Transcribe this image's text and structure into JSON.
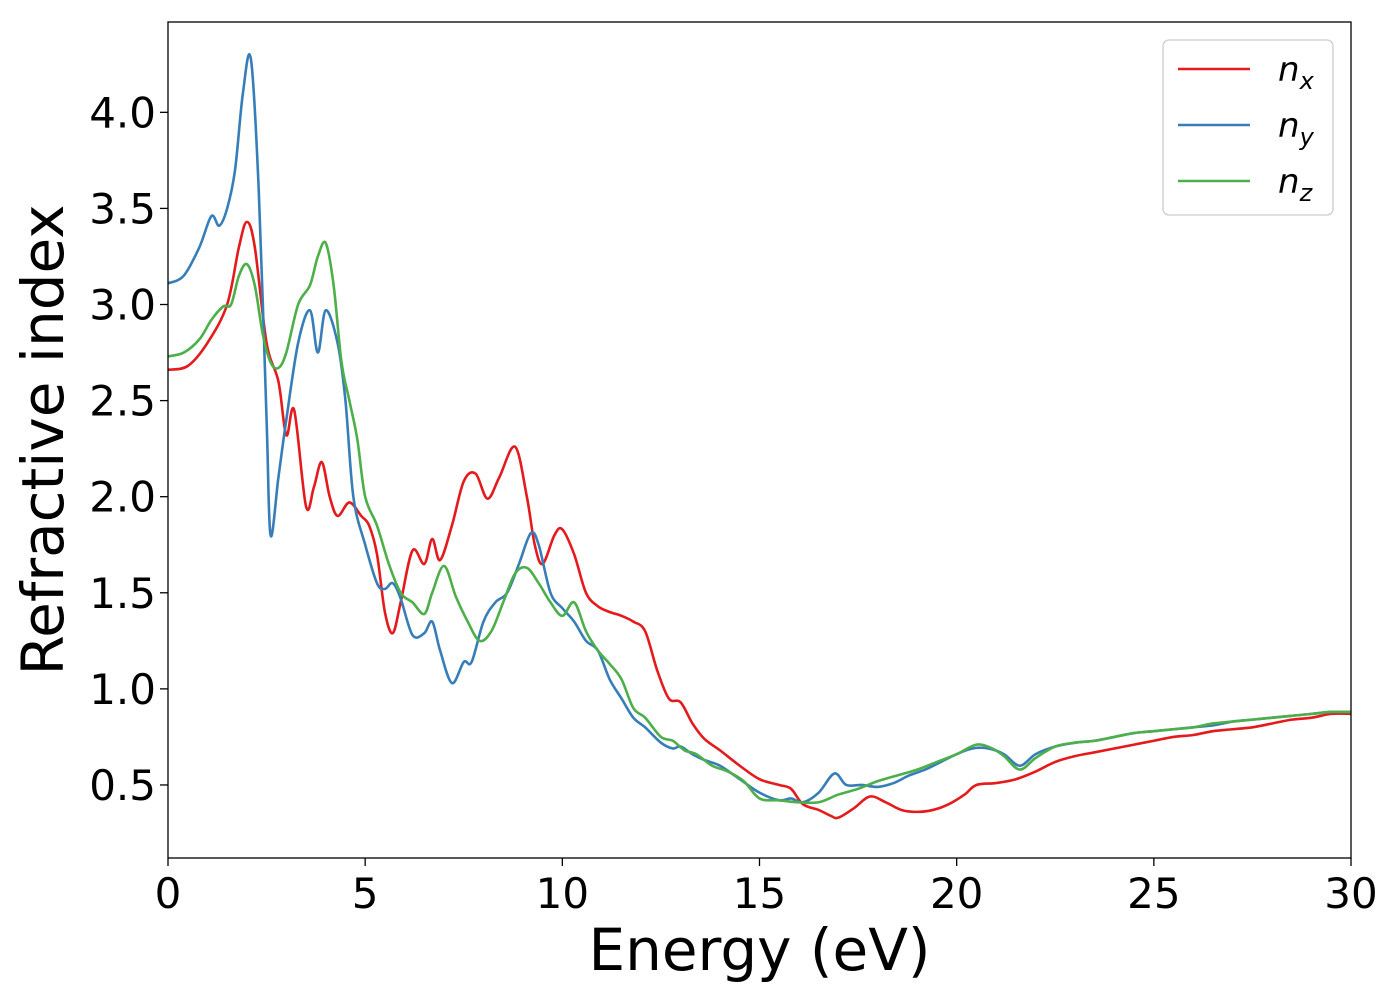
{
  "chart_data": {
    "type": "line",
    "xlabel": "Energy (eV)",
    "ylabel": "Refractive index",
    "xlim": [
      0,
      30
    ],
    "ylim": [
      0.12,
      4.47
    ],
    "xticks": [
      0,
      5,
      10,
      15,
      20,
      25,
      30
    ],
    "xtick_labels": [
      "0",
      "5",
      "10",
      "15",
      "20",
      "25",
      "30"
    ],
    "yticks": [
      0.5,
      1.0,
      1.5,
      2.0,
      2.5,
      3.0,
      3.5,
      4.0
    ],
    "ytick_labels": [
      "0.5",
      "1.0",
      "1.5",
      "2.0",
      "2.5",
      "3.0",
      "3.5",
      "4.0"
    ],
    "grid": false,
    "legend_position": "top-right",
    "series": [
      {
        "name": "n",
        "subscript": "x",
        "color": "#e41a1c",
        "points": [
          [
            0,
            2.66
          ],
          [
            0.5,
            2.68
          ],
          [
            1.0,
            2.8
          ],
          [
            1.5,
            3.0
          ],
          [
            1.8,
            3.3
          ],
          [
            2.0,
            3.43
          ],
          [
            2.2,
            3.3
          ],
          [
            2.5,
            2.8
          ],
          [
            2.8,
            2.6
          ],
          [
            3.0,
            2.32
          ],
          [
            3.2,
            2.45
          ],
          [
            3.5,
            1.95
          ],
          [
            3.7,
            2.05
          ],
          [
            3.9,
            2.18
          ],
          [
            4.1,
            2.0
          ],
          [
            4.3,
            1.9
          ],
          [
            4.6,
            1.97
          ],
          [
            4.9,
            1.9
          ],
          [
            5.1,
            1.85
          ],
          [
            5.3,
            1.7
          ],
          [
            5.5,
            1.4
          ],
          [
            5.7,
            1.29
          ],
          [
            5.9,
            1.45
          ],
          [
            6.2,
            1.72
          ],
          [
            6.5,
            1.65
          ],
          [
            6.7,
            1.78
          ],
          [
            6.9,
            1.67
          ],
          [
            7.2,
            1.85
          ],
          [
            7.5,
            2.08
          ],
          [
            7.8,
            2.12
          ],
          [
            8.1,
            1.99
          ],
          [
            8.4,
            2.1
          ],
          [
            8.8,
            2.26
          ],
          [
            9.1,
            2.0
          ],
          [
            9.3,
            1.75
          ],
          [
            9.5,
            1.65
          ],
          [
            9.8,
            1.8
          ],
          [
            10.0,
            1.83
          ],
          [
            10.3,
            1.7
          ],
          [
            10.6,
            1.5
          ],
          [
            10.9,
            1.43
          ],
          [
            11.2,
            1.4
          ],
          [
            11.5,
            1.38
          ],
          [
            11.8,
            1.35
          ],
          [
            12.1,
            1.3
          ],
          [
            12.4,
            1.1
          ],
          [
            12.7,
            0.95
          ],
          [
            13.0,
            0.93
          ],
          [
            13.3,
            0.82
          ],
          [
            13.6,
            0.74
          ],
          [
            14.0,
            0.68
          ],
          [
            14.5,
            0.6
          ],
          [
            15.0,
            0.53
          ],
          [
            15.5,
            0.5
          ],
          [
            15.8,
            0.48
          ],
          [
            16.1,
            0.4
          ],
          [
            16.5,
            0.37
          ],
          [
            16.8,
            0.34
          ],
          [
            17.0,
            0.33
          ],
          [
            17.4,
            0.38
          ],
          [
            17.8,
            0.44
          ],
          [
            18.2,
            0.41
          ],
          [
            18.6,
            0.37
          ],
          [
            19.0,
            0.36
          ],
          [
            19.4,
            0.37
          ],
          [
            19.8,
            0.4
          ],
          [
            20.2,
            0.45
          ],
          [
            20.5,
            0.5
          ],
          [
            21.0,
            0.51
          ],
          [
            21.5,
            0.53
          ],
          [
            22.0,
            0.57
          ],
          [
            22.5,
            0.62
          ],
          [
            23.0,
            0.65
          ],
          [
            23.5,
            0.67
          ],
          [
            24.0,
            0.69
          ],
          [
            24.5,
            0.71
          ],
          [
            25.0,
            0.73
          ],
          [
            25.5,
            0.75
          ],
          [
            26.0,
            0.76
          ],
          [
            26.5,
            0.78
          ],
          [
            27.0,
            0.79
          ],
          [
            27.5,
            0.8
          ],
          [
            28.0,
            0.82
          ],
          [
            28.5,
            0.84
          ],
          [
            29.0,
            0.85
          ],
          [
            29.5,
            0.87
          ],
          [
            30.0,
            0.87
          ]
        ]
      },
      {
        "name": "n",
        "subscript": "y",
        "color": "#377eb8",
        "points": [
          [
            0,
            3.11
          ],
          [
            0.4,
            3.15
          ],
          [
            0.8,
            3.3
          ],
          [
            1.1,
            3.46
          ],
          [
            1.3,
            3.41
          ],
          [
            1.5,
            3.5
          ],
          [
            1.7,
            3.7
          ],
          [
            1.9,
            4.1
          ],
          [
            2.1,
            4.28
          ],
          [
            2.3,
            3.6
          ],
          [
            2.5,
            2.4
          ],
          [
            2.6,
            1.8
          ],
          [
            2.8,
            2.1
          ],
          [
            3.0,
            2.4
          ],
          [
            3.3,
            2.8
          ],
          [
            3.6,
            2.97
          ],
          [
            3.8,
            2.75
          ],
          [
            4.0,
            2.97
          ],
          [
            4.3,
            2.8
          ],
          [
            4.5,
            2.5
          ],
          [
            4.7,
            2.0
          ],
          [
            5.0,
            1.75
          ],
          [
            5.3,
            1.55
          ],
          [
            5.5,
            1.52
          ],
          [
            5.7,
            1.55
          ],
          [
            5.9,
            1.47
          ],
          [
            6.2,
            1.28
          ],
          [
            6.5,
            1.29
          ],
          [
            6.7,
            1.35
          ],
          [
            6.9,
            1.2
          ],
          [
            7.2,
            1.03
          ],
          [
            7.5,
            1.14
          ],
          [
            7.7,
            1.14
          ],
          [
            8.0,
            1.35
          ],
          [
            8.3,
            1.45
          ],
          [
            8.6,
            1.5
          ],
          [
            8.9,
            1.65
          ],
          [
            9.2,
            1.81
          ],
          [
            9.4,
            1.75
          ],
          [
            9.7,
            1.5
          ],
          [
            10.0,
            1.42
          ],
          [
            10.3,
            1.35
          ],
          [
            10.6,
            1.25
          ],
          [
            10.9,
            1.2
          ],
          [
            11.2,
            1.05
          ],
          [
            11.5,
            0.95
          ],
          [
            11.8,
            0.85
          ],
          [
            12.1,
            0.8
          ],
          [
            12.5,
            0.72
          ],
          [
            12.8,
            0.69
          ],
          [
            13.0,
            0.7
          ],
          [
            13.3,
            0.66
          ],
          [
            13.6,
            0.63
          ],
          [
            14.0,
            0.6
          ],
          [
            14.5,
            0.53
          ],
          [
            15.0,
            0.46
          ],
          [
            15.5,
            0.42
          ],
          [
            15.8,
            0.43
          ],
          [
            16.1,
            0.41
          ],
          [
            16.5,
            0.46
          ],
          [
            16.9,
            0.56
          ],
          [
            17.2,
            0.5
          ],
          [
            17.6,
            0.5
          ],
          [
            18.0,
            0.49
          ],
          [
            18.4,
            0.51
          ],
          [
            18.8,
            0.55
          ],
          [
            19.2,
            0.58
          ],
          [
            19.6,
            0.62
          ],
          [
            20.0,
            0.66
          ],
          [
            20.4,
            0.69
          ],
          [
            20.8,
            0.69
          ],
          [
            21.2,
            0.66
          ],
          [
            21.6,
            0.6
          ],
          [
            22.0,
            0.66
          ],
          [
            22.5,
            0.7
          ],
          [
            23.0,
            0.72
          ],
          [
            23.5,
            0.73
          ],
          [
            24.0,
            0.75
          ],
          [
            24.5,
            0.77
          ],
          [
            25.0,
            0.78
          ],
          [
            25.5,
            0.79
          ],
          [
            26.0,
            0.8
          ],
          [
            26.5,
            0.81
          ],
          [
            27.0,
            0.83
          ],
          [
            27.5,
            0.84
          ],
          [
            28.0,
            0.85
          ],
          [
            28.5,
            0.86
          ],
          [
            29.0,
            0.87
          ],
          [
            29.5,
            0.88
          ],
          [
            30.0,
            0.88
          ]
        ]
      },
      {
        "name": "n",
        "subscript": "z",
        "color": "#4daf4a",
        "points": [
          [
            0,
            2.73
          ],
          [
            0.4,
            2.75
          ],
          [
            0.8,
            2.82
          ],
          [
            1.1,
            2.92
          ],
          [
            1.4,
            2.99
          ],
          [
            1.6,
            3.0
          ],
          [
            1.8,
            3.15
          ],
          [
            2.0,
            3.21
          ],
          [
            2.2,
            3.1
          ],
          [
            2.4,
            2.85
          ],
          [
            2.6,
            2.7
          ],
          [
            2.8,
            2.67
          ],
          [
            3.0,
            2.75
          ],
          [
            3.3,
            3.0
          ],
          [
            3.6,
            3.1
          ],
          [
            3.8,
            3.25
          ],
          [
            4.0,
            3.32
          ],
          [
            4.2,
            3.1
          ],
          [
            4.4,
            2.7
          ],
          [
            4.6,
            2.5
          ],
          [
            4.8,
            2.3
          ],
          [
            5.0,
            2.0
          ],
          [
            5.3,
            1.85
          ],
          [
            5.6,
            1.65
          ],
          [
            5.9,
            1.5
          ],
          [
            6.2,
            1.45
          ],
          [
            6.5,
            1.39
          ],
          [
            6.7,
            1.5
          ],
          [
            7.0,
            1.64
          ],
          [
            7.3,
            1.48
          ],
          [
            7.6,
            1.35
          ],
          [
            7.9,
            1.25
          ],
          [
            8.2,
            1.3
          ],
          [
            8.5,
            1.45
          ],
          [
            8.8,
            1.6
          ],
          [
            9.1,
            1.63
          ],
          [
            9.4,
            1.55
          ],
          [
            9.7,
            1.45
          ],
          [
            10.0,
            1.38
          ],
          [
            10.3,
            1.45
          ],
          [
            10.6,
            1.3
          ],
          [
            10.9,
            1.2
          ],
          [
            11.2,
            1.13
          ],
          [
            11.5,
            1.05
          ],
          [
            11.8,
            0.9
          ],
          [
            12.1,
            0.85
          ],
          [
            12.5,
            0.75
          ],
          [
            12.8,
            0.73
          ],
          [
            13.1,
            0.68
          ],
          [
            13.4,
            0.66
          ],
          [
            13.8,
            0.6
          ],
          [
            14.2,
            0.57
          ],
          [
            14.6,
            0.52
          ],
          [
            15.0,
            0.43
          ],
          [
            15.5,
            0.42
          ],
          [
            16.0,
            0.41
          ],
          [
            16.5,
            0.41
          ],
          [
            17.0,
            0.45
          ],
          [
            17.5,
            0.48
          ],
          [
            18.0,
            0.52
          ],
          [
            18.5,
            0.55
          ],
          [
            19.0,
            0.58
          ],
          [
            19.5,
            0.62
          ],
          [
            20.0,
            0.66
          ],
          [
            20.5,
            0.71
          ],
          [
            20.9,
            0.69
          ],
          [
            21.2,
            0.65
          ],
          [
            21.6,
            0.58
          ],
          [
            22.0,
            0.64
          ],
          [
            22.5,
            0.7
          ],
          [
            23.0,
            0.72
          ],
          [
            23.5,
            0.73
          ],
          [
            24.0,
            0.75
          ],
          [
            24.5,
            0.77
          ],
          [
            25.0,
            0.78
          ],
          [
            25.5,
            0.79
          ],
          [
            26.0,
            0.8
          ],
          [
            26.5,
            0.82
          ],
          [
            27.0,
            0.83
          ],
          [
            27.5,
            0.84
          ],
          [
            28.0,
            0.85
          ],
          [
            28.5,
            0.86
          ],
          [
            29.0,
            0.87
          ],
          [
            29.5,
            0.88
          ],
          [
            30.0,
            0.88
          ]
        ]
      }
    ]
  }
}
